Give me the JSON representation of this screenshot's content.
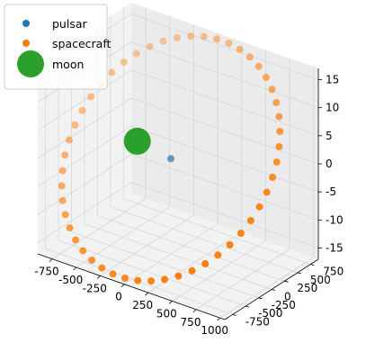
{
  "chart_data": {
    "type": "scatter3d",
    "axes": {
      "x": {
        "range": [
          -900,
          1050
        ],
        "ticks": [
          -750,
          -500,
          -250,
          0,
          250,
          500,
          750,
          1000
        ]
      },
      "y": {
        "range": [
          -900,
          900
        ],
        "ticks": [
          -750,
          -500,
          -250,
          0,
          250,
          500,
          750
        ]
      },
      "z": {
        "range": [
          -17,
          17
        ],
        "ticks": [
          -15,
          -10,
          -5,
          0,
          5,
          10,
          15
        ]
      }
    },
    "grid": true,
    "legend": {
      "placement": "top-left"
    },
    "series": [
      {
        "name": "pulsar",
        "color": "#1f77b4",
        "marker_size": "small",
        "points": [
          {
            "x": 0,
            "y": 0,
            "z": 0
          }
        ]
      },
      {
        "name": "spacecraft",
        "color": "#ff7f0e",
        "marker_size": "small",
        "orbit": {
          "center": [
            0,
            0,
            0
          ],
          "radius": 1000,
          "z_amplitude": 15,
          "count": 50
        }
      },
      {
        "name": "moon",
        "color": "#2ca02c",
        "marker_size": "large",
        "points": [
          {
            "x": -350,
            "y": 0,
            "z": 1
          }
        ]
      }
    ]
  }
}
